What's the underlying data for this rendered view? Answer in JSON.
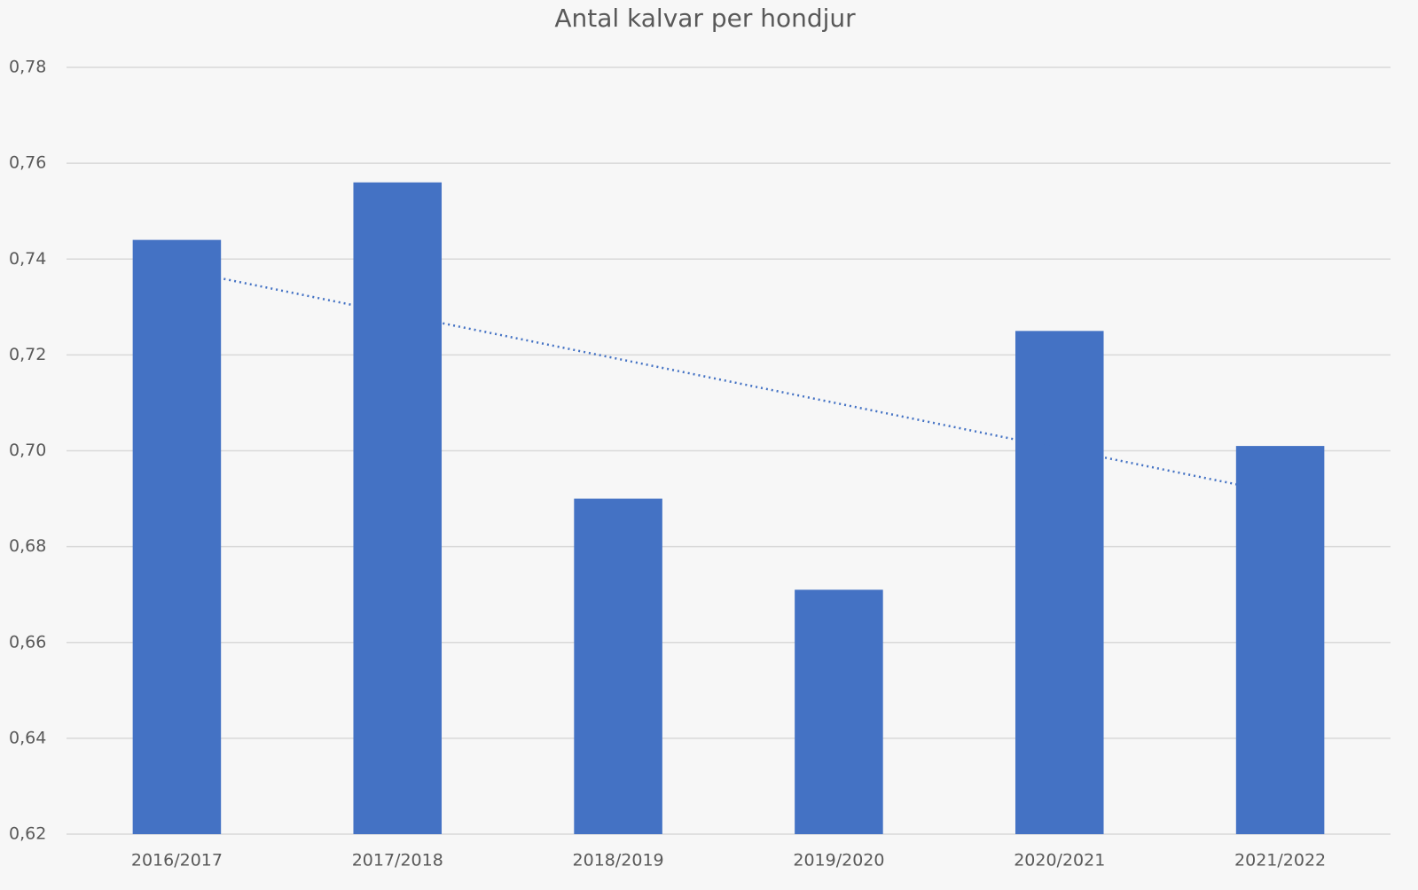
{
  "chart_data": {
    "type": "bar",
    "title": "Antal kalvar per hondjur",
    "categories": [
      "2016/2017",
      "2017/2018",
      "2018/2019",
      "2019/2020",
      "2020/2021",
      "2021/2022"
    ],
    "values": [
      0.744,
      0.756,
      0.69,
      0.671,
      0.725,
      0.701
    ],
    "color": "#4472c4",
    "ylim": [
      0.62,
      0.78
    ],
    "yticks": [
      {
        "value": 0.62,
        "label": "0,62"
      },
      {
        "value": 0.64,
        "label": "0,64"
      },
      {
        "value": 0.66,
        "label": "0,66"
      },
      {
        "value": 0.68,
        "label": "0,68"
      },
      {
        "value": 0.7,
        "label": "0,70"
      },
      {
        "value": 0.72,
        "label": "0,72"
      },
      {
        "value": 0.74,
        "label": "0,74"
      },
      {
        "value": 0.76,
        "label": "0,76"
      },
      {
        "value": 0.78,
        "label": "0,78"
      }
    ],
    "grid": true,
    "trendline": "linear"
  }
}
